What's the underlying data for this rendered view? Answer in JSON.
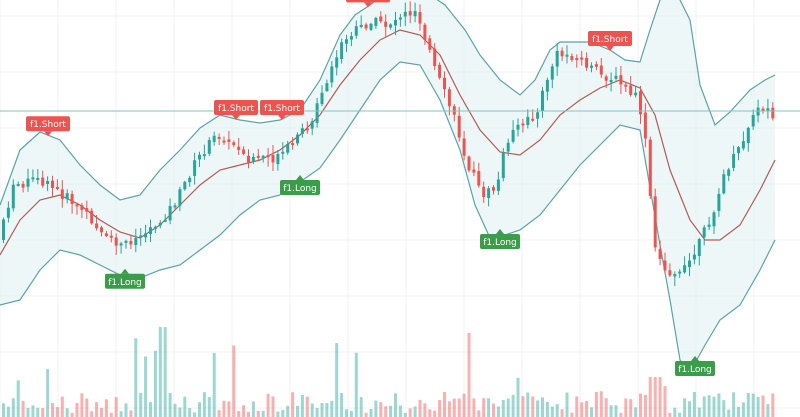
{
  "chart_data": {
    "type": "candlestick",
    "indicators": [
      "bollinger_bands",
      "volume"
    ],
    "grid": true,
    "legend": "none",
    "colors": {
      "up": "#26a69a",
      "down": "#ef5350",
      "band_line": "#5ba3a8",
      "band_fill": "#dff0f1",
      "basis": "#b25b55",
      "long_signal": "#3a9d4a",
      "short_signal": "#ef5350",
      "price_line": "#7fc6c6"
    },
    "signal_label_long": "f1.Long",
    "signal_label_short": "f1.Short",
    "signals": [
      {
        "type": "short",
        "x": 48
      },
      {
        "type": "long",
        "x": 125
      },
      {
        "type": "short",
        "x": 236
      },
      {
        "type": "short",
        "x": 282
      },
      {
        "type": "long",
        "x": 300
      },
      {
        "type": "short",
        "x": 368
      },
      {
        "type": "long",
        "x": 500
      },
      {
        "type": "short",
        "x": 610
      },
      {
        "type": "long",
        "x": 695
      }
    ]
  }
}
